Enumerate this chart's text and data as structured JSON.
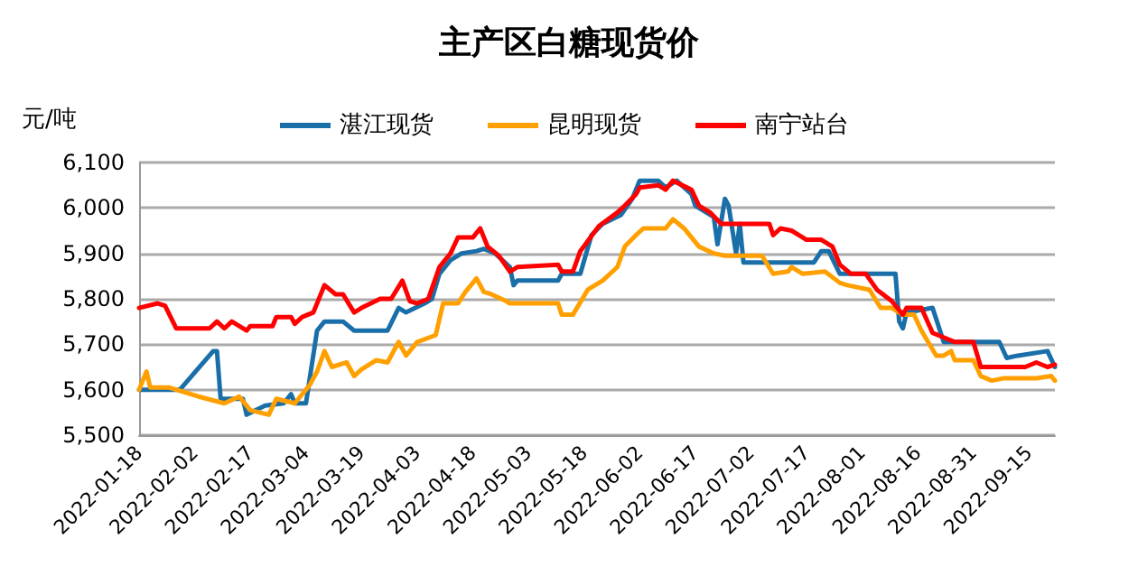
{
  "chart_data": {
    "type": "line",
    "title": "主产区白糖现货价",
    "ylabel": "元/吨",
    "xlim": [
      "2022-01-18",
      "2022-09-22"
    ],
    "xticks": [
      "2022-01-18",
      "2022-02-02",
      "2022-02-17",
      "2022-03-04",
      "2022-03-19",
      "2022-04-03",
      "2022-04-18",
      "2022-05-03",
      "2022-05-18",
      "2022-06-02",
      "2022-06-17",
      "2022-07-02",
      "2022-07-17",
      "2022-08-01",
      "2022-08-16",
      "2022-08-31",
      "2022-09-15"
    ],
    "ylim": [
      5500,
      6100
    ],
    "yticks": [
      {
        "value": 5500,
        "label": "5,500"
      },
      {
        "value": 5600,
        "label": "5,600"
      },
      {
        "value": 5700,
        "label": "5,700"
      },
      {
        "value": 5800,
        "label": "5,800"
      },
      {
        "value": 5900,
        "label": "5,900"
      },
      {
        "value": 6000,
        "label": "6,000"
      },
      {
        "value": 6100,
        "label": "6,100"
      }
    ],
    "grid": "y",
    "legend": "top",
    "marker": "none",
    "line_style": "solid",
    "series": [
      {
        "name": "湛江现货",
        "color": "#1b6fa8",
        "x": [
          "2022-01-18",
          "2022-01-29",
          "2022-02-07",
          "2022-02-08",
          "2022-02-09",
          "2022-02-15",
          "2022-02-16",
          "2022-02-21",
          "2022-02-26",
          "2022-02-28",
          "2022-03-01",
          "2022-03-04",
          "2022-03-07",
          "2022-03-09",
          "2022-03-14",
          "2022-03-17",
          "2022-03-26",
          "2022-03-29",
          "2022-03-31",
          "2022-04-05",
          "2022-04-07",
          "2022-04-09",
          "2022-04-12",
          "2022-04-15",
          "2022-04-19",
          "2022-04-21",
          "2022-04-24",
          "2022-04-28",
          "2022-04-29",
          "2022-04-30",
          "2022-05-11",
          "2022-05-12",
          "2022-05-17",
          "2022-05-20",
          "2022-05-23",
          "2022-05-28",
          "2022-05-31",
          "2022-06-02",
          "2022-06-07",
          "2022-06-09",
          "2022-06-12",
          "2022-06-16",
          "2022-06-17",
          "2022-06-20",
          "2022-06-22",
          "2022-06-23",
          "2022-06-25",
          "2022-06-26",
          "2022-06-28",
          "2022-06-29",
          "2022-06-30",
          "2022-07-19",
          "2022-07-21",
          "2022-07-23",
          "2022-07-26",
          "2022-08-10",
          "2022-08-11",
          "2022-08-12",
          "2022-08-13",
          "2022-08-20",
          "2022-08-23",
          "2022-09-07",
          "2022-09-09",
          "2022-09-12",
          "2022-09-20",
          "2022-09-22"
        ],
        "values": [
          5600,
          5600,
          5685,
          5685,
          5580,
          5580,
          5545,
          5565,
          5570,
          5590,
          5570,
          5570,
          5730,
          5750,
          5750,
          5730,
          5730,
          5780,
          5770,
          5790,
          5800,
          5855,
          5885,
          5900,
          5905,
          5910,
          5900,
          5870,
          5830,
          5840,
          5840,
          5855,
          5855,
          5940,
          5965,
          5985,
          6020,
          6060,
          6060,
          6045,
          6060,
          6030,
          6005,
          5990,
          5980,
          5920,
          6020,
          6005,
          5900,
          5965,
          5880,
          5880,
          5905,
          5905,
          5855,
          5855,
          5750,
          5735,
          5770,
          5780,
          5705,
          5705,
          5670,
          5675,
          5685,
          5650
        ]
      },
      {
        "name": "昆明现货",
        "color": "#ffa000",
        "x": [
          "2022-01-18",
          "2022-01-20",
          "2022-01-21",
          "2022-01-26",
          "2022-02-03",
          "2022-02-10",
          "2022-02-14",
          "2022-02-17",
          "2022-02-22",
          "2022-02-24",
          "2022-03-01",
          "2022-03-05",
          "2022-03-07",
          "2022-03-09",
          "2022-03-11",
          "2022-03-15",
          "2022-03-17",
          "2022-03-19",
          "2022-03-23",
          "2022-03-26",
          "2022-03-29",
          "2022-03-31",
          "2022-04-03",
          "2022-04-08",
          "2022-04-10",
          "2022-04-14",
          "2022-04-16",
          "2022-04-19",
          "2022-04-21",
          "2022-04-23",
          "2022-04-27",
          "2022-04-28",
          "2022-05-11",
          "2022-05-12",
          "2022-05-15",
          "2022-05-19",
          "2022-05-23",
          "2022-05-27",
          "2022-05-29",
          "2022-06-01",
          "2022-06-03",
          "2022-06-09",
          "2022-06-11",
          "2022-06-14",
          "2022-06-18",
          "2022-06-22",
          "2022-06-25",
          "2022-07-05",
          "2022-07-08",
          "2022-07-12",
          "2022-07-13",
          "2022-07-16",
          "2022-07-22",
          "2022-07-26",
          "2022-07-28",
          "2022-08-03",
          "2022-08-06",
          "2022-08-09",
          "2022-08-12",
          "2022-08-15",
          "2022-08-17",
          "2022-08-21",
          "2022-08-23",
          "2022-08-25",
          "2022-08-26",
          "2022-08-31",
          "2022-09-02",
          "2022-09-05",
          "2022-09-08",
          "2022-09-17",
          "2022-09-21",
          "2022-09-22"
        ],
        "values": [
          5600,
          5640,
          5605,
          5605,
          5585,
          5570,
          5585,
          5555,
          5545,
          5580,
          5570,
          5610,
          5640,
          5685,
          5650,
          5660,
          5630,
          5645,
          5665,
          5660,
          5705,
          5675,
          5705,
          5720,
          5790,
          5790,
          5815,
          5845,
          5815,
          5810,
          5795,
          5790,
          5790,
          5765,
          5765,
          5820,
          5840,
          5870,
          5915,
          5940,
          5955,
          5955,
          5975,
          5955,
          5915,
          5900,
          5895,
          5895,
          5855,
          5860,
          5870,
          5855,
          5860,
          5835,
          5830,
          5820,
          5780,
          5780,
          5765,
          5765,
          5730,
          5675,
          5675,
          5685,
          5665,
          5665,
          5630,
          5620,
          5625,
          5625,
          5630,
          5620
        ]
      },
      {
        "name": "南宁站台",
        "color": "#ff0000",
        "x": [
          "2022-01-18",
          "2022-01-23",
          "2022-01-25",
          "2022-01-28",
          "2022-02-06",
          "2022-02-08",
          "2022-02-10",
          "2022-02-12",
          "2022-02-16",
          "2022-02-17",
          "2022-02-23",
          "2022-02-24",
          "2022-02-28",
          "2022-03-01",
          "2022-03-03",
          "2022-03-06",
          "2022-03-09",
          "2022-03-12",
          "2022-03-14",
          "2022-03-17",
          "2022-03-19",
          "2022-03-24",
          "2022-03-27",
          "2022-03-30",
          "2022-04-01",
          "2022-04-03",
          "2022-04-06",
          "2022-04-09",
          "2022-04-12",
          "2022-04-14",
          "2022-04-18",
          "2022-04-20",
          "2022-04-22",
          "2022-04-25",
          "2022-04-28",
          "2022-04-30",
          "2022-05-11",
          "2022-05-12",
          "2022-05-15",
          "2022-05-17",
          "2022-05-22",
          "2022-05-27",
          "2022-05-29",
          "2022-06-01",
          "2022-06-02",
          "2022-06-07",
          "2022-06-09",
          "2022-06-11",
          "2022-06-16",
          "2022-06-18",
          "2022-06-21",
          "2022-06-24",
          "2022-07-07",
          "2022-07-08",
          "2022-07-10",
          "2022-07-13",
          "2022-07-17",
          "2022-07-21",
          "2022-07-24",
          "2022-07-26",
          "2022-07-29",
          "2022-08-02",
          "2022-08-05",
          "2022-08-09",
          "2022-08-12",
          "2022-08-13",
          "2022-08-17",
          "2022-08-20",
          "2022-08-23",
          "2022-08-26",
          "2022-08-31",
          "2022-09-02",
          "2022-09-14",
          "2022-09-17",
          "2022-09-20",
          "2022-09-22"
        ],
        "values": [
          5780,
          5790,
          5785,
          5735,
          5735,
          5750,
          5735,
          5750,
          5730,
          5740,
          5740,
          5760,
          5760,
          5745,
          5760,
          5770,
          5830,
          5810,
          5810,
          5770,
          5780,
          5800,
          5800,
          5840,
          5795,
          5790,
          5800,
          5870,
          5900,
          5935,
          5935,
          5955,
          5915,
          5895,
          5860,
          5870,
          5875,
          5860,
          5860,
          5905,
          5960,
          5990,
          6005,
          6030,
          6045,
          6050,
          6040,
          6060,
          6040,
          6005,
          5990,
          5965,
          5965,
          5940,
          5955,
          5950,
          5930,
          5930,
          5915,
          5875,
          5855,
          5855,
          5820,
          5795,
          5765,
          5780,
          5780,
          5725,
          5715,
          5705,
          5705,
          5650,
          5650,
          5660,
          5650,
          5655
        ]
      }
    ]
  }
}
